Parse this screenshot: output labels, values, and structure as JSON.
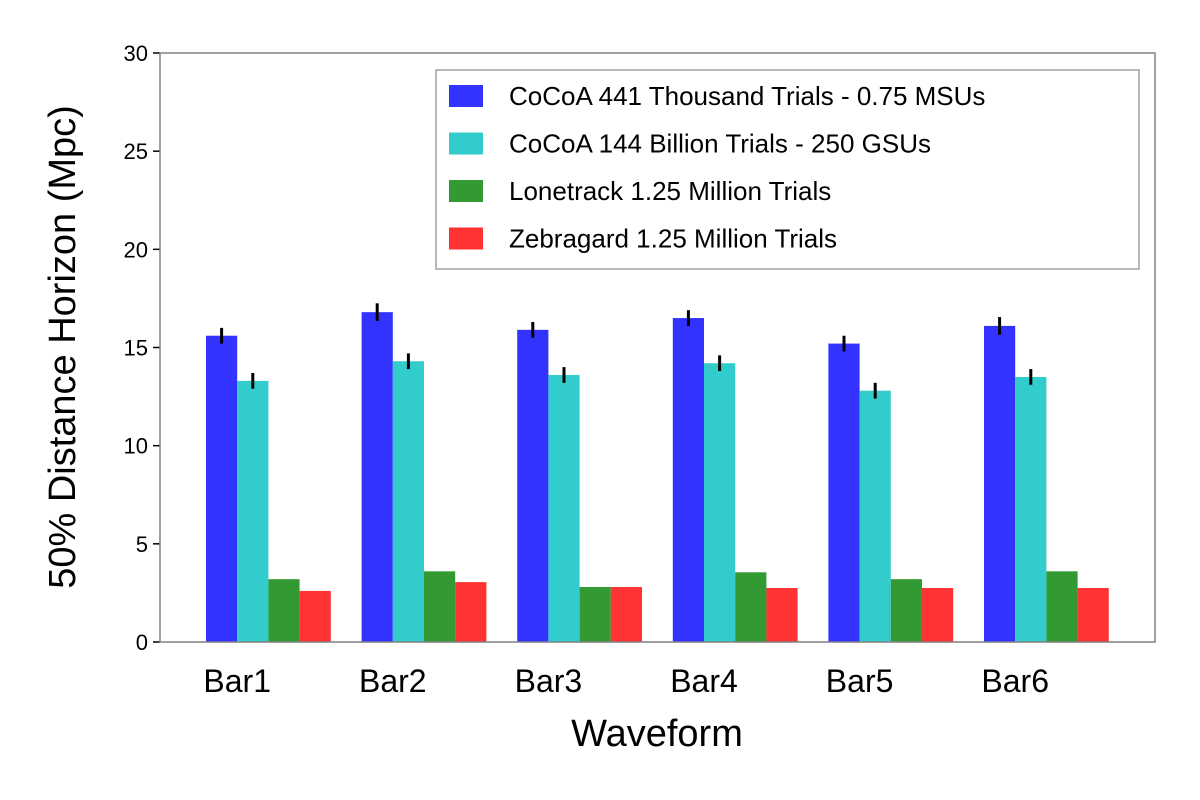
{
  "chart_data": {
    "type": "bar",
    "title": "",
    "xlabel": "Waveform",
    "ylabel": "50% Distance Horizon (Mpc)",
    "ylim": [
      0,
      30
    ],
    "yticks": [
      0,
      5,
      10,
      15,
      20,
      25,
      30
    ],
    "grid": false,
    "legend_position": "top-right",
    "categories": [
      "Bar1",
      "Bar2",
      "Bar3",
      "Bar4",
      "Bar5",
      "Bar6"
    ],
    "series": [
      {
        "name": "CoCoA 441 Thousand Trials - 0.75 MSUs",
        "color": "#3333ff",
        "values": [
          15.6,
          16.8,
          15.9,
          16.5,
          15.2,
          16.1
        ],
        "errors": [
          0.4,
          0.45,
          0.4,
          0.4,
          0.4,
          0.45
        ]
      },
      {
        "name": "CoCoA 144 Billion Trials - 250 GSUs",
        "color": "#33cccc",
        "values": [
          13.3,
          14.3,
          13.6,
          14.2,
          12.8,
          13.5
        ],
        "errors": [
          0.4,
          0.4,
          0.4,
          0.4,
          0.4,
          0.4
        ]
      },
      {
        "name": "Lonetrack 1.25 Million Trials",
        "color": "#339933",
        "values": [
          3.2,
          3.6,
          2.8,
          3.55,
          3.2,
          3.6
        ],
        "errors": null
      },
      {
        "name": "Zebragard 1.25 Million Trials",
        "color": "#ff3333",
        "values": [
          2.6,
          3.05,
          2.8,
          2.75,
          2.75,
          2.75
        ],
        "errors": null
      }
    ]
  }
}
